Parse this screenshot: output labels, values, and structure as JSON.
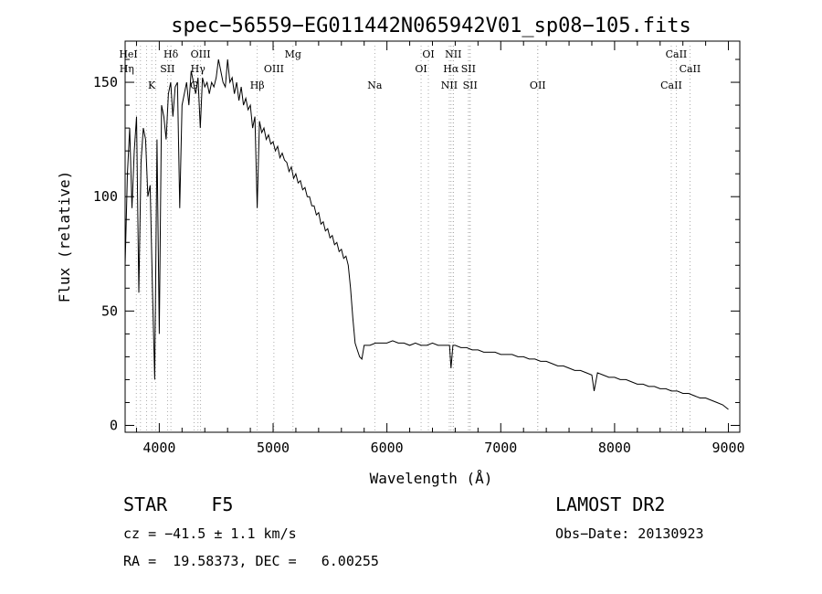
{
  "chart_data": {
    "type": "line",
    "title": "spec−56559−EG011442N065942V01_sp08−105.fits",
    "xlabel": "Wavelength (Å)",
    "ylabel": "Flux (relative)",
    "xlim": [
      3700,
      9100
    ],
    "ylim": [
      -3,
      168
    ],
    "xticks": [
      4000,
      5000,
      6000,
      7000,
      8000,
      9000
    ],
    "yticks": [
      0,
      50,
      100,
      150
    ],
    "grid": false,
    "legend": "none",
    "line_color": "#000000",
    "marker_line_color": "#999999",
    "series": [
      {
        "x": [
          3700,
          3720,
          3740,
          3760,
          3780,
          3800,
          3820,
          3840,
          3860,
          3880,
          3900,
          3920,
          3940,
          3960,
          3980,
          4000,
          4020,
          4040,
          4060,
          4080,
          4100,
          4120,
          4140,
          4160,
          4180,
          4200,
          4220,
          4240,
          4260,
          4280,
          4300,
          4320,
          4340,
          4360,
          4380,
          4400,
          4420,
          4440,
          4460,
          4480,
          4500,
          4520,
          4540,
          4560,
          4580,
          4600,
          4620,
          4640,
          4660,
          4680,
          4700,
          4720,
          4740,
          4760,
          4780,
          4800,
          4820,
          4840,
          4860,
          4880,
          4900,
          4920,
          4940,
          4960,
          4980,
          5000,
          5020,
          5040,
          5060,
          5080,
          5100,
          5120,
          5140,
          5160,
          5180,
          5200,
          5220,
          5240,
          5260,
          5280,
          5300,
          5320,
          5340,
          5360,
          5380,
          5400,
          5420,
          5440,
          5460,
          5480,
          5500,
          5520,
          5540,
          5560,
          5580,
          5600,
          5620,
          5640,
          5660,
          5680,
          5700,
          5720,
          5740,
          5760,
          5780,
          5800,
          5850,
          5900,
          5950,
          6000,
          6050,
          6100,
          6150,
          6200,
          6250,
          6300,
          6350,
          6400,
          6450,
          6500,
          6550,
          6563,
          6580,
          6600,
          6650,
          6700,
          6750,
          6800,
          6850,
          6900,
          6950,
          7000,
          7050,
          7100,
          7150,
          7200,
          7250,
          7300,
          7350,
          7400,
          7450,
          7500,
          7550,
          7600,
          7650,
          7700,
          7750,
          7800,
          7820,
          7850,
          7900,
          7950,
          8000,
          8050,
          8100,
          8150,
          8200,
          8250,
          8300,
          8350,
          8400,
          8450,
          8500,
          8550,
          8600,
          8650,
          8700,
          8750,
          8800,
          8850,
          8900,
          8950,
          9000
        ],
        "y": [
          70,
          110,
          130,
          95,
          120,
          135,
          58,
          115,
          130,
          125,
          100,
          105,
          60,
          20,
          125,
          40,
          140,
          135,
          125,
          145,
          150,
          135,
          148,
          150,
          95,
          140,
          145,
          150,
          140,
          155,
          150,
          145,
          152,
          130,
          152,
          148,
          150,
          145,
          150,
          148,
          152,
          160,
          155,
          150,
          148,
          160,
          150,
          152,
          145,
          150,
          142,
          148,
          140,
          143,
          138,
          140,
          130,
          135,
          95,
          133,
          128,
          130,
          125,
          127,
          123,
          124,
          120,
          122,
          117,
          119,
          116,
          115,
          111,
          113,
          108,
          110,
          106,
          107,
          103,
          104,
          100,
          100,
          96,
          96,
          92,
          93,
          88,
          89,
          85,
          86,
          82,
          83,
          79,
          80,
          76,
          77,
          73,
          74,
          70,
          60,
          47,
          36,
          33,
          30,
          29,
          35,
          35,
          36,
          36,
          36,
          37,
          36,
          36,
          35,
          36,
          35,
          35,
          36,
          35,
          35,
          35,
          25,
          35,
          35,
          34,
          34,
          33,
          33,
          32,
          32,
          32,
          31,
          31,
          31,
          30,
          30,
          29,
          29,
          28,
          28,
          27,
          26,
          26,
          25,
          24,
          24,
          23,
          22,
          15,
          23,
          22,
          21,
          21,
          20,
          20,
          19,
          18,
          18,
          17,
          17,
          16,
          16,
          15,
          15,
          14,
          14,
          13,
          12,
          12,
          11,
          10,
          9,
          7
        ]
      }
    ],
    "line_markers": [
      {
        "label": "HeI",
        "wave": 3889,
        "row": 0,
        "dx": -20
      },
      {
        "label": "Hδ",
        "wave": 4102,
        "row": 0,
        "dx": 0
      },
      {
        "label": "OIII",
        "wave": 4363,
        "row": 0,
        "dx": 0
      },
      {
        "label": "Mg",
        "wave": 5175,
        "row": 0,
        "dx": 0
      },
      {
        "label": "OI",
        "wave": 6364,
        "row": 0,
        "dx": 0
      },
      {
        "label": "NII",
        "wave": 6583,
        "row": 0,
        "dx": 0
      },
      {
        "label": "CaII",
        "wave": 8542,
        "row": 0,
        "dx": 0
      },
      {
        "label": "Hη",
        "wave": 3835,
        "row": 1,
        "dx": -15
      },
      {
        "label": "SII",
        "wave": 4072,
        "row": 1,
        "dx": 0
      },
      {
        "label": "Hγ",
        "wave": 4340,
        "row": 1,
        "dx": 0
      },
      {
        "label": "OIII",
        "wave": 5007,
        "row": 1,
        "dx": 0
      },
      {
        "label": "OI",
        "wave": 6300,
        "row": 1,
        "dx": 0
      },
      {
        "label": "Hα",
        "wave": 6563,
        "row": 1,
        "dx": 0
      },
      {
        "label": "SII",
        "wave": 6716,
        "row": 1,
        "dx": 0
      },
      {
        "label": "CaII",
        "wave": 8662,
        "row": 1,
        "dx": 0
      },
      {
        "label": "K",
        "wave": 3934,
        "row": 2,
        "dx": 0
      },
      {
        "label": "G",
        "wave": 4305,
        "row": 2,
        "dx": 0
      },
      {
        "label": "Hβ",
        "wave": 4861,
        "row": 2,
        "dx": 0
      },
      {
        "label": "Na",
        "wave": 5893,
        "row": 2,
        "dx": 0
      },
      {
        "label": "NII",
        "wave": 6548,
        "row": 2,
        "dx": 0
      },
      {
        "label": "SII",
        "wave": 6731,
        "row": 2,
        "dx": 0
      },
      {
        "label": "OII",
        "wave": 7325,
        "row": 2,
        "dx": 0
      },
      {
        "label": "CaII",
        "wave": 8498,
        "row": 2,
        "dx": 0
      }
    ],
    "marker_extra_lines": [
      3798,
      3970,
      6583,
      6716,
      6731,
      7325
    ]
  },
  "footer": {
    "classification": "STAR    F5",
    "survey": "LAMOST DR2",
    "velocity": "cz = −41.5 ± 1.1 km/s",
    "obs_date": "Obs−Date: 20130923",
    "coords": "RA =  19.58373, DEC =   6.00255"
  }
}
